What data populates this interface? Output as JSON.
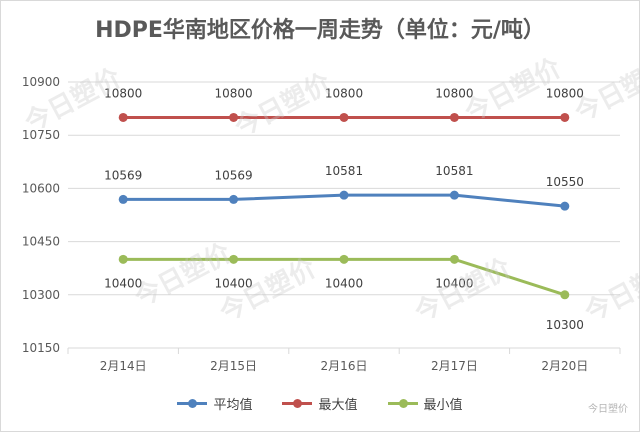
{
  "chart_data": {
    "type": "line",
    "title": "HDPE华南地区价格一周走势（单位：元/吨）",
    "categories": [
      "2月14日",
      "2月15日",
      "2月16日",
      "2月17日",
      "2月20日"
    ],
    "yticks": [
      "10900",
      "10750",
      "10600",
      "10450",
      "10300",
      "10150"
    ],
    "ylim": [
      10150,
      10900
    ],
    "grid": true,
    "legend_position": "bottom",
    "series": [
      {
        "name": "平均值",
        "color": "#4f81bd",
        "values": [
          10569,
          10569,
          10581,
          10581,
          10550
        ],
        "labels": [
          "10569",
          "10569",
          "10581",
          "10581",
          "10550"
        ]
      },
      {
        "name": "最大值",
        "color": "#c0504d",
        "values": [
          10800,
          10800,
          10800,
          10800,
          10800
        ],
        "labels": [
          "10800",
          "10800",
          "10800",
          "10800",
          "10800"
        ]
      },
      {
        "name": "最小值",
        "color": "#9bbb59",
        "values": [
          10400,
          10400,
          10400,
          10400,
          10300
        ],
        "labels": [
          "10400",
          "10400",
          "10400",
          "10400",
          "10300"
        ]
      }
    ]
  },
  "watermark": {
    "text": "今日塑价"
  },
  "footer": {
    "text": "今日塑价"
  }
}
